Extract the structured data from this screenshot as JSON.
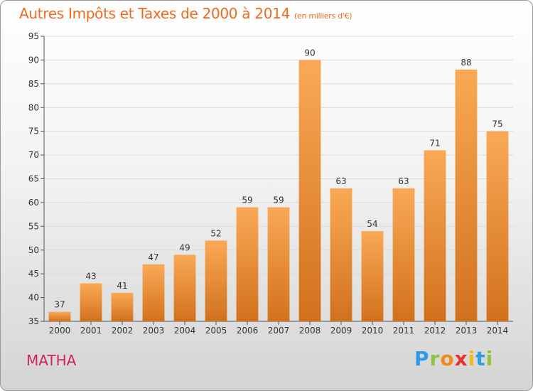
{
  "title": "Autres Impôts et Taxes de 2000 à 2014",
  "unit": "(en milliers d'€)",
  "city": "MATHA",
  "logo": {
    "letters": [
      "P",
      "r",
      "o",
      "x",
      "i",
      "t",
      "i"
    ],
    "colors": [
      "#2d9be6",
      "#8cc63e",
      "#f08a1c",
      "#e5322d",
      "#f6b91c",
      "#2d9be6",
      "#8cc63e"
    ]
  },
  "colors": {
    "title": "#ee6b1e",
    "city": "#d1245c",
    "bar_top": "#f9a955",
    "bar_bottom": "#d2711d"
  },
  "chart_data": {
    "type": "bar",
    "categories": [
      "2000",
      "2001",
      "2002",
      "2003",
      "2004",
      "2005",
      "2006",
      "2007",
      "2008",
      "2009",
      "2010",
      "2011",
      "2012",
      "2013",
      "2014"
    ],
    "values": [
      37,
      43,
      41,
      47,
      49,
      52,
      59,
      59,
      90,
      63,
      54,
      63,
      71,
      88,
      75
    ],
    "data_labels": [
      "37",
      "43",
      "41",
      "47",
      "49",
      "52",
      "59",
      "59",
      "90",
      "63",
      "54",
      "63",
      "71",
      "88",
      "75"
    ],
    "ylim": [
      35,
      95
    ],
    "yticks": [
      "35",
      "40",
      "45",
      "50",
      "55",
      "60",
      "65",
      "70",
      "75",
      "80",
      "85",
      "90",
      "95"
    ],
    "grid": true
  }
}
